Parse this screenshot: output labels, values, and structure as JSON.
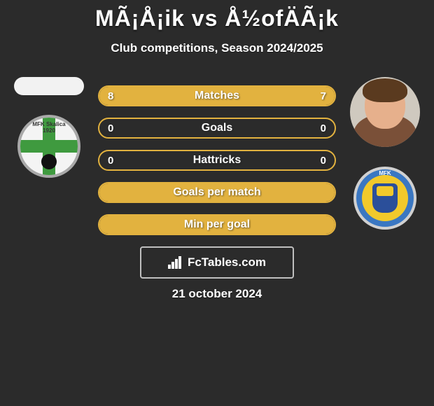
{
  "background_color": "#2b2b2b",
  "text_color": "#ffffff",
  "title": {
    "text": "MÃ¡Å¡ik vs Å½ofÄÃ¡k",
    "fontsize": 32,
    "color": "#ffffff"
  },
  "subtitle": {
    "text": "Club competitions, Season 2024/2025",
    "fontsize": 17,
    "color": "#ffffff"
  },
  "left_side": {
    "player_has_photo": false,
    "club": {
      "name": "MFK Skalica",
      "year": "1920",
      "primary_color": "#3f9a3f",
      "bg_color": "#f4f4f4"
    }
  },
  "right_side": {
    "player_has_photo": true,
    "club": {
      "name": "MFK Zemplín Michalovce",
      "short_top": "MFK",
      "short_mid": "ZEMPLÍN",
      "primary_color": "#3a77c2",
      "accent_color": "#f2c92b"
    }
  },
  "stats": {
    "bar_border_color": "#e2b23f",
    "bar_fill_color": "#e2b23f",
    "bar_bg_color": "#2b2b2b",
    "label_fontsize": 16,
    "value_fontsize": 15,
    "rows": [
      {
        "label": "Matches",
        "left": "8",
        "right": "7",
        "fill_left_pct": 53,
        "fill_right_pct": 47,
        "show_values": true
      },
      {
        "label": "Goals",
        "left": "0",
        "right": "0",
        "fill_left_pct": 0,
        "fill_right_pct": 0,
        "show_values": true
      },
      {
        "label": "Hattricks",
        "left": "0",
        "right": "0",
        "fill_left_pct": 0,
        "fill_right_pct": 0,
        "show_values": true
      },
      {
        "label": "Goals per match",
        "left": "",
        "right": "",
        "fill_left_pct": 100,
        "fill_right_pct": 0,
        "show_values": false
      },
      {
        "label": "Min per goal",
        "left": "",
        "right": "",
        "fill_left_pct": 100,
        "fill_right_pct": 0,
        "show_values": false
      }
    ]
  },
  "branding": {
    "text": "FcTables.com",
    "border_color": "#bfbfbf"
  },
  "date": {
    "text": "21 october 2024",
    "fontsize": 17
  }
}
